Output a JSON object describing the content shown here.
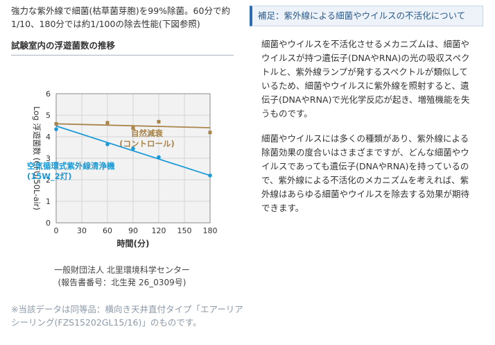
{
  "intro_text": "強力な紫外線で細菌(枯草菌芽胞)を99%除菌。60分で約1/10、180分では約1/100の除去性能(下図参照)",
  "section_title": "試験室内の浮遊菌数の推移",
  "source_lines": [
    "一般財団法人 北里環境科学センター",
    "(報告書番号：北生発 26_0309号)"
  ],
  "note_text": "※当該データは同等品：横向き天井直付タイプ「エアーリア シーリング(FZS15202GL15/16)」のものです。",
  "box_title": "補足：紫外線による細菌やウイルスの不活化について",
  "paragraphs": [
    "細菌やウイルスを不活化させるメカニズムは、細菌やウイルスが持つ遺伝子(DNAやRNA)の光の吸収スペクトルと、紫外線ランプが発するスペクトルが類似しているため、細菌やウイルスに紫外線を照射すると、遺伝子(DNAやRNA)で光化学反応が起き、増殖機能を失うものです。",
    "細菌やウイルスには多くの種類があり、紫外線による除菌効果の度合いはさまざまですが、どんな細菌やウイルスであっても遺伝子(DNAやRNA)を持っているので、紫外線による不活化のメカニズムを考えれば、紫外線はあらゆる細菌やウイルスを除去する効果が期待できます。"
  ],
  "chart_data": {
    "type": "scatter",
    "xlabel": "時間(分)",
    "ylabel": "Log 浮遊菌数 (CFU/50L-air)",
    "xlim": [
      0,
      180
    ],
    "ylim": [
      0,
      6
    ],
    "xticks": [
      0,
      30,
      60,
      90,
      120,
      150,
      180
    ],
    "yticks": [
      0,
      1,
      2,
      3,
      4,
      5,
      6
    ],
    "grid": true,
    "series": [
      {
        "name": "自然減衰(コントロール)",
        "label_lines": [
          "自然減衰",
          "(コントロール)"
        ],
        "color": "#a8844a",
        "marker": "square",
        "x": [
          0,
          60,
          90,
          120,
          180
        ],
        "y": [
          4.6,
          4.65,
          4.4,
          4.7,
          4.2
        ],
        "trend": [
          [
            0,
            4.6
          ],
          [
            180,
            4.42
          ]
        ]
      },
      {
        "name": "空気循環式紫外線清浄機(15W_2灯)",
        "label_lines": [
          "空気循環式紫外線清浄機",
          "(15W_2灯)"
        ],
        "color": "#1a9ad6",
        "marker": "circle",
        "x": [
          0,
          60,
          90,
          120,
          180
        ],
        "y": [
          4.35,
          3.65,
          3.45,
          3.05,
          2.2
        ],
        "trend": [
          [
            0,
            4.5
          ],
          [
            180,
            2.2
          ]
        ]
      }
    ]
  }
}
